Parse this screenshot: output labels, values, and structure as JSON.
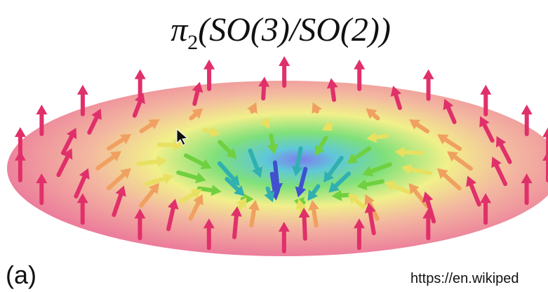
{
  "title": {
    "base": "π",
    "subscript": "2",
    "argument": "(SO(3)/SO(2))"
  },
  "label": "(a)",
  "source": "https://en.wikiped"
}
